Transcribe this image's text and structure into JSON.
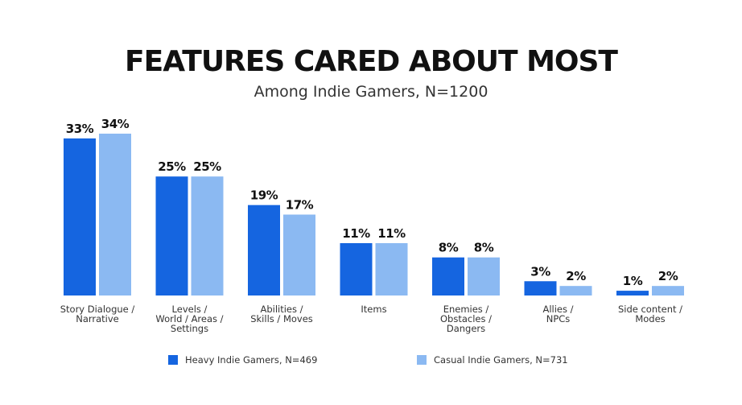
{
  "chart_data": {
    "type": "bar",
    "title": "FEATURES CARED ABOUT MOST",
    "subtitle": "Among Indie Gamers, N=1200",
    "categories": [
      [
        "Story Dialogue /",
        "Narrative"
      ],
      [
        "Levels /",
        "World / Areas /",
        "Settings"
      ],
      [
        "Abilities /",
        "Skills / Moves"
      ],
      [
        "Items"
      ],
      [
        "Enemies /",
        "Obstacles /",
        "Dangers"
      ],
      [
        "Allies /",
        "NPCs"
      ],
      [
        "Side content /",
        "Modes"
      ]
    ],
    "series": [
      {
        "name": "Heavy Indie Gamers, N=469",
        "color": "#1565e0",
        "values": [
          33,
          25,
          19,
          11,
          8,
          3,
          1
        ],
        "labels": [
          "33%",
          "25%",
          "19%",
          "11%",
          "8%",
          "3%",
          "1%"
        ]
      },
      {
        "name": "Casual Indie Gamers, N=731",
        "color": "#8bb9f2",
        "values": [
          34,
          25,
          17,
          11,
          8,
          2,
          2
        ],
        "labels": [
          "34%",
          "25%",
          "17%",
          "11%",
          "8%",
          "2%",
          "2%"
        ]
      }
    ],
    "ylim": [
      0,
      34
    ],
    "grid": false,
    "legend_position": "bottom"
  }
}
